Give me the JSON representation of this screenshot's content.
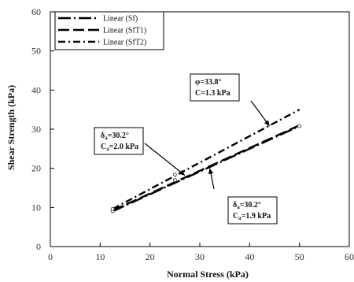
{
  "chart_data": {
    "type": "line",
    "title": "",
    "xlabel": "Normal Stress (kPa)",
    "ylabel": "Shear Strength (kPa)",
    "xlim": [
      0,
      60
    ],
    "ylim": [
      0,
      60
    ],
    "xticks": [
      0,
      10,
      20,
      30,
      40,
      50,
      60
    ],
    "yticks": [
      0,
      10,
      20,
      30,
      40,
      50,
      60
    ],
    "grid": false,
    "legend_position": "top-left",
    "series": [
      {
        "name": "Linear (Sf)",
        "style": "long-dash-dot",
        "x": [
          12.5,
          50
        ],
        "y": [
          9.0,
          30.8
        ]
      },
      {
        "name": "Linear (SfT1)",
        "style": "long-dash",
        "x": [
          12.5,
          50
        ],
        "y": [
          9.2,
          31.0
        ]
      },
      {
        "name": "Linear (SfT2)",
        "style": "dash-dot",
        "x": [
          12.5,
          50
        ],
        "y": [
          9.6,
          35.0
        ]
      }
    ],
    "points": [
      {
        "x": 12.5,
        "y": 9.0
      },
      {
        "x": 12.5,
        "y": 9.6
      },
      {
        "x": 25.0,
        "y": 17.0
      },
      {
        "x": 25.0,
        "y": 18.4
      },
      {
        "x": 50.0,
        "y": 30.8
      }
    ],
    "annotations": [
      {
        "lines": [
          "φ=33.8°",
          "C=1.3 kPa"
        ],
        "arrow_to": [
          44,
          30.8
        ]
      },
      {
        "lines": [
          "δa=30.2°",
          "Ca=2.0 kPa"
        ],
        "arrow_to": [
          27,
          18.2
        ]
      },
      {
        "lines": [
          "δa=30.2°",
          "Ca=1.9 kPa"
        ],
        "arrow_to": [
          32,
          20.0
        ]
      }
    ]
  },
  "colors": {
    "line": "#000000",
    "axis": "#000000",
    "text": "#111111"
  }
}
